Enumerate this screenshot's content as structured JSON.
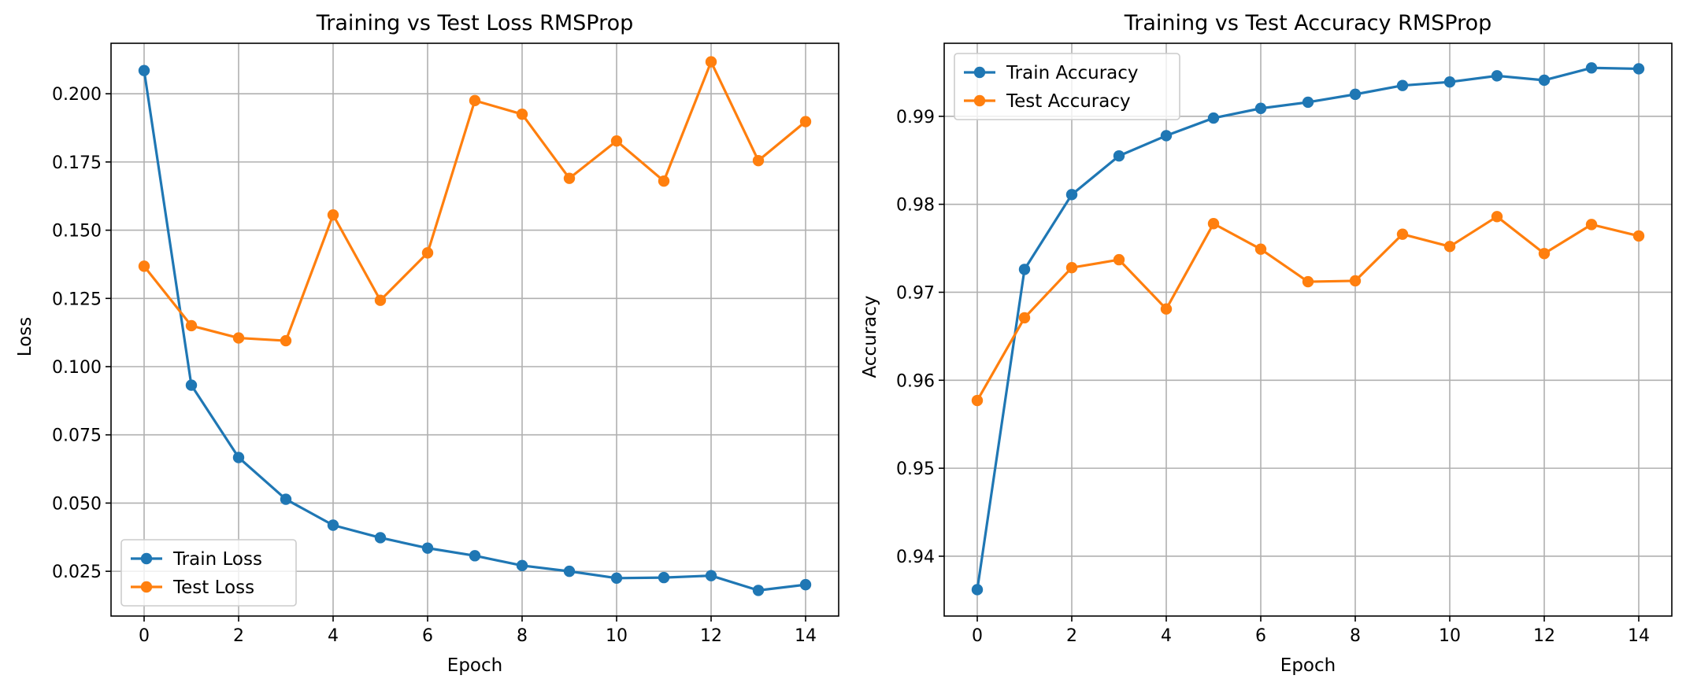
{
  "chart_data": [
    {
      "type": "line",
      "title": "Training vs Test Loss RMSProp",
      "xlabel": "Epoch",
      "ylabel": "Loss",
      "x": [
        0,
        1,
        2,
        3,
        4,
        5,
        6,
        7,
        8,
        9,
        10,
        11,
        12,
        13,
        14
      ],
      "xlim": [
        -0.7,
        14.7
      ],
      "ylim": [
        0.0086,
        0.2185
      ],
      "xticks": [
        0,
        2,
        4,
        6,
        8,
        10,
        12,
        14
      ],
      "xtick_labels": [
        "0",
        "2",
        "4",
        "6",
        "8",
        "10",
        "12",
        "14"
      ],
      "yticks": [
        0.025,
        0.05,
        0.075,
        0.1,
        0.125,
        0.15,
        0.175,
        0.2
      ],
      "ytick_labels": [
        "0.025",
        "0.050",
        "0.075",
        "0.100",
        "0.125",
        "0.150",
        "0.175",
        "0.200"
      ],
      "grid": true,
      "legend_position": "lower-left",
      "series": [
        {
          "name": "Train Loss",
          "color": "#1f77b4",
          "marker": "circle",
          "values": [
            0.2085,
            0.0932,
            0.0667,
            0.0514,
            0.0419,
            0.0373,
            0.0335,
            0.0307,
            0.0271,
            0.025,
            0.0225,
            0.0227,
            0.0234,
            0.018,
            0.0201
          ]
        },
        {
          "name": "Test Loss",
          "color": "#ff7f0e",
          "marker": "circle",
          "values": [
            0.1368,
            0.115,
            0.1105,
            0.1095,
            0.1556,
            0.1243,
            0.1417,
            0.1975,
            0.1925,
            0.169,
            0.1827,
            0.168,
            0.2117,
            0.1755,
            0.1898
          ]
        }
      ]
    },
    {
      "type": "line",
      "title": "Training vs Test Accuracy RMSProp",
      "xlabel": "Epoch",
      "ylabel": "Accuracy",
      "x": [
        0,
        1,
        2,
        3,
        4,
        5,
        6,
        7,
        8,
        9,
        10,
        11,
        12,
        13,
        14
      ],
      "xlim": [
        -0.7,
        14.7
      ],
      "ylim": [
        0.9332,
        0.9983
      ],
      "xticks": [
        0,
        2,
        4,
        6,
        8,
        10,
        12,
        14
      ],
      "xtick_labels": [
        "0",
        "2",
        "4",
        "6",
        "8",
        "10",
        "12",
        "14"
      ],
      "yticks": [
        0.94,
        0.95,
        0.96,
        0.97,
        0.98,
        0.99
      ],
      "ytick_labels": [
        "0.94",
        "0.95",
        "0.96",
        "0.97",
        "0.98",
        "0.99"
      ],
      "grid": true,
      "legend_position": "upper-left",
      "series": [
        {
          "name": "Train Accuracy",
          "color": "#1f77b4",
          "marker": "circle",
          "values": [
            0.9362,
            0.9726,
            0.9811,
            0.9855,
            0.9878,
            0.9898,
            0.9909,
            0.9916,
            0.9925,
            0.9935,
            0.9939,
            0.9946,
            0.9941,
            0.9955,
            0.9954
          ]
        },
        {
          "name": "Test Accuracy",
          "color": "#ff7f0e",
          "marker": "circle",
          "values": [
            0.9577,
            0.9671,
            0.9728,
            0.9737,
            0.9681,
            0.9778,
            0.9749,
            0.9712,
            0.9713,
            0.9766,
            0.9752,
            0.9786,
            0.9744,
            0.9777,
            0.9764
          ]
        }
      ]
    }
  ]
}
